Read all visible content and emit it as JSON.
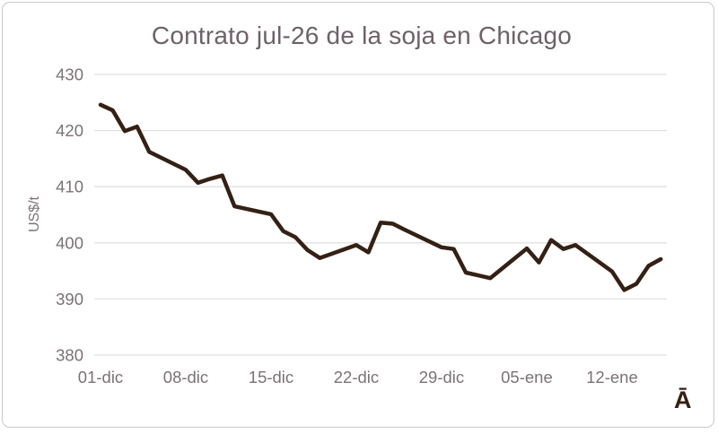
{
  "corner_text": "Ā",
  "colors": {
    "line": "#342014",
    "title": "#6e6168",
    "tick_label": "#7d7176",
    "gridline": "#e3e1df",
    "frame_border": "#c9c9c9",
    "background": "#ffffff"
  },
  "chart_data": {
    "type": "line",
    "title": "Contrato jul-26 de la soja en Chicago",
    "xlabel": "",
    "ylabel": "US$/t",
    "ylim": [
      380,
      430
    ],
    "yticks": [
      380,
      390,
      400,
      410,
      420,
      430
    ],
    "grid": "horizontal-only",
    "legend": "none",
    "x_tick_labels": [
      "01-dic",
      "08-dic",
      "15-dic",
      "22-dic",
      "29-dic",
      "05-ene",
      "12-ene"
    ],
    "x_tick_day_offsets": [
      0,
      7,
      14,
      21,
      28,
      35,
      42
    ],
    "points": [
      {
        "date": "01-dic",
        "day": 0,
        "value": 424.6
      },
      {
        "date": "02-dic",
        "day": 1,
        "value": 423.6
      },
      {
        "date": "03-dic",
        "day": 2,
        "value": 419.9
      },
      {
        "date": "04-dic",
        "day": 3,
        "value": 420.7
      },
      {
        "date": "05-dic",
        "day": 4,
        "value": 416.2
      },
      {
        "date": "08-dic",
        "day": 7,
        "value": 413.0
      },
      {
        "date": "09-dic",
        "day": 8,
        "value": 410.7
      },
      {
        "date": "10-dic",
        "day": 9,
        "value": 411.4
      },
      {
        "date": "11-dic",
        "day": 10,
        "value": 412.0
      },
      {
        "date": "12-dic",
        "day": 11,
        "value": 406.5
      },
      {
        "date": "15-dic",
        "day": 14,
        "value": 405.1
      },
      {
        "date": "16-dic",
        "day": 15,
        "value": 402.1
      },
      {
        "date": "17-dic",
        "day": 16,
        "value": 401.0
      },
      {
        "date": "18-dic",
        "day": 17,
        "value": 398.7
      },
      {
        "date": "19-dic",
        "day": 18,
        "value": 397.3
      },
      {
        "date": "22-dic",
        "day": 21,
        "value": 399.6
      },
      {
        "date": "23-dic",
        "day": 22,
        "value": 398.3
      },
      {
        "date": "24-dic",
        "day": 23,
        "value": 403.6
      },
      {
        "date": "25-dic",
        "day": 24,
        "value": 403.4
      },
      {
        "date": "26-dic",
        "day": 25,
        "value": 402.3
      },
      {
        "date": "29-dic",
        "day": 28,
        "value": 399.2
      },
      {
        "date": "30-dic",
        "day": 29,
        "value": 398.9
      },
      {
        "date": "31-dic",
        "day": 30,
        "value": 394.7
      },
      {
        "date": "01-ene",
        "day": 31,
        "value": 394.2
      },
      {
        "date": "02-ene",
        "day": 32,
        "value": 393.7
      },
      {
        "date": "05-ene",
        "day": 35,
        "value": 399.0
      },
      {
        "date": "06-ene",
        "day": 36,
        "value": 396.5
      },
      {
        "date": "07-ene",
        "day": 37,
        "value": 400.5
      },
      {
        "date": "08-ene",
        "day": 38,
        "value": 398.9
      },
      {
        "date": "09-ene",
        "day": 39,
        "value": 399.6
      },
      {
        "date": "12-ene",
        "day": 42,
        "value": 394.9
      },
      {
        "date": "13-ene",
        "day": 43,
        "value": 391.6
      },
      {
        "date": "14-ene",
        "day": 44,
        "value": 392.7
      },
      {
        "date": "15-ene",
        "day": 45,
        "value": 395.9
      },
      {
        "date": "16-ene",
        "day": 46,
        "value": 397.1
      }
    ]
  }
}
